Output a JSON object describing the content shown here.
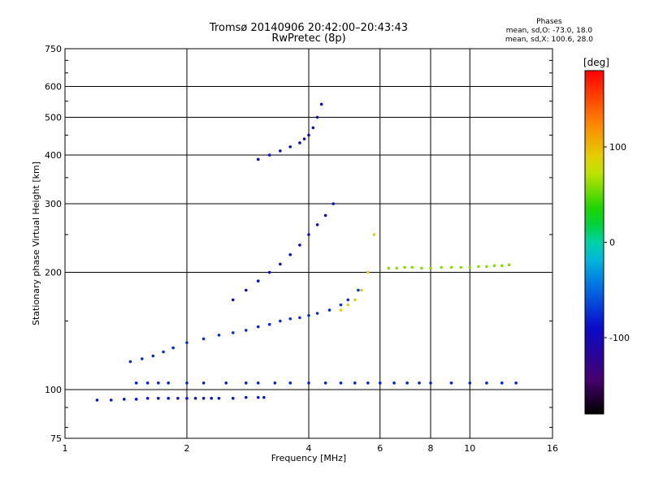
{
  "title": "Tromsø 20140906 20:42:00–20:43:43",
  "subtitle": "RwPretec (8p)",
  "phases_header": "Phases",
  "phases_line1": "mean, sd,O: -73.0, 18.0",
  "phases_line2": "mean, sd,X: 100.6, 28.0",
  "colorbar_unit": "[deg]",
  "chart_data": {
    "type": "scatter",
    "title": "Tromsø 20140906 20:42:00–20:43:43",
    "subtitle": "RwPretec (8p)",
    "xlabel": "Frequency [MHz]",
    "ylabel": "Stationary phase Virtual Height [km]",
    "xscale": "log",
    "yscale": "log",
    "xlim": [
      1,
      16
    ],
    "ylim": [
      75,
      750
    ],
    "xticks": [
      1,
      2,
      4,
      6,
      8,
      10,
      16
    ],
    "yticks": [
      75,
      100,
      200,
      300,
      400,
      500,
      600,
      750
    ],
    "grid": true,
    "colorbar": {
      "label": "[deg]",
      "range": [
        -180,
        180
      ],
      "ticks": [
        100,
        0,
        -100
      ]
    },
    "colors": {
      "blue_trace": "#2a6fd8",
      "dark_trace": "#1a1aa6",
      "cyan_trace": "#1aa0e0",
      "orange_trace": "#ff7a00",
      "yellow_trace": "#e8e000"
    },
    "series": [
      {
        "phase": -85,
        "x": [
          1.2,
          1.3,
          1.4,
          1.5,
          1.6,
          1.7,
          1.8,
          1.9,
          2.0,
          2.1,
          2.2,
          2.3,
          2.4,
          2.6,
          2.8,
          3.0,
          3.1
        ],
        "y": [
          94,
          94,
          94.5,
          94.5,
          95,
          95,
          95,
          95,
          95,
          95,
          95,
          95,
          95,
          95,
          95.5,
          95.5,
          95.5
        ]
      },
      {
        "phase": -80,
        "x": [
          1.5,
          1.6,
          1.7,
          1.8,
          2.0,
          2.2,
          2.5,
          2.8,
          3.0,
          3.3,
          3.6,
          4.0,
          4.4,
          4.8,
          5.2,
          5.6,
          6.0,
          6.5,
          7.0,
          7.5,
          8.0,
          9.0,
          10.0,
          11.0,
          12.0,
          13.0
        ],
        "y": [
          104,
          104,
          104,
          104,
          104,
          104,
          104,
          104,
          104,
          104,
          104,
          104,
          104,
          104,
          104,
          104,
          104,
          104,
          104,
          104,
          104,
          104,
          104,
          104,
          104,
          104
        ]
      },
      {
        "phase": -75,
        "x": [
          1.45,
          1.55,
          1.65,
          1.75,
          1.85,
          2.0,
          2.2,
          2.4,
          2.6,
          2.8,
          3.0,
          3.2,
          3.4,
          3.6,
          3.8,
          4.0,
          4.2,
          4.5,
          4.8,
          5.0,
          5.3
        ],
        "y": [
          118,
          120,
          122,
          125,
          128,
          132,
          135,
          138,
          140,
          142,
          145,
          147,
          150,
          152,
          153,
          155,
          157,
          160,
          165,
          170,
          180
        ]
      },
      {
        "phase": -90,
        "x": [
          2.6,
          2.8,
          3.0,
          3.2,
          3.4,
          3.6,
          3.8,
          4.0,
          4.2,
          4.4,
          4.6
        ],
        "y": [
          170,
          180,
          190,
          200,
          210,
          222,
          235,
          250,
          265,
          280,
          300
        ]
      },
      {
        "phase": -95,
        "x": [
          3.0,
          3.2,
          3.4,
          3.6,
          3.8,
          3.9,
          4.0,
          4.1,
          4.2,
          4.3
        ],
        "y": [
          390,
          400,
          410,
          420,
          430,
          440,
          450,
          470,
          500,
          540
        ]
      },
      {
        "phase": 90,
        "x": [
          4.8,
          5.0,
          5.2,
          5.4,
          5.6,
          5.8
        ],
        "y": [
          160,
          165,
          170,
          180,
          200,
          250
        ]
      },
      {
        "phase": 60,
        "x": [
          6.3,
          6.6,
          6.9,
          7.2,
          7.6,
          8.0,
          8.5,
          9.0,
          9.5,
          10.0,
          10.5,
          11.0,
          11.5,
          12.0,
          12.5
        ],
        "y": [
          205,
          205,
          206,
          206,
          205,
          205,
          206,
          206,
          206,
          206,
          207,
          207,
          208,
          208,
          209
        ]
      }
    ]
  }
}
